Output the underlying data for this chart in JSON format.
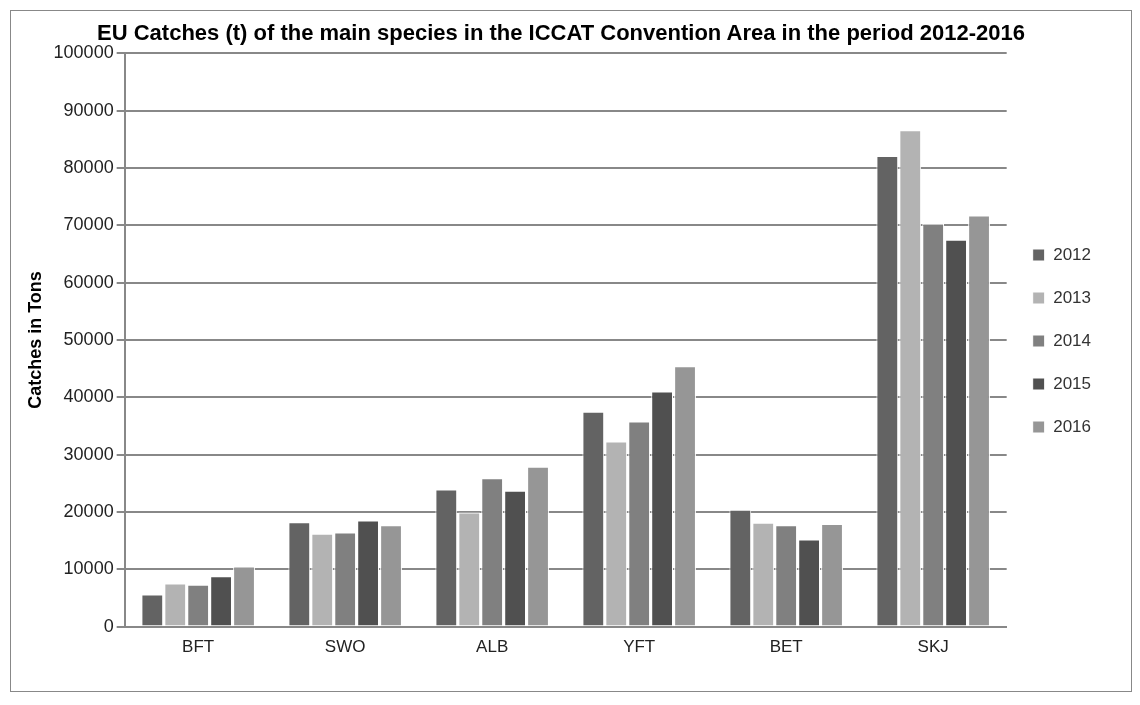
{
  "chart_data": {
    "type": "bar",
    "title": "EU Catches (t) of the main species in the ICCAT Convention Area in the period 2012-2016",
    "ylabel": "Catches in Tons",
    "categories": [
      "BFT",
      "SWO",
      "ALB",
      "YFT",
      "BET",
      "SKJ"
    ],
    "series": [
      {
        "name": "2012",
        "color": "#636363",
        "values": [
          5600,
          18200,
          23900,
          37500,
          20400,
          82100
        ]
      },
      {
        "name": "2013",
        "color": "#b3b3b3",
        "values": [
          7500,
          16200,
          19900,
          32300,
          18100,
          86600
        ]
      },
      {
        "name": "2014",
        "color": "#808080",
        "values": [
          7300,
          16400,
          25900,
          35800,
          17700,
          70300
        ]
      },
      {
        "name": "2015",
        "color": "#505050",
        "values": [
          8800,
          18500,
          23700,
          41000,
          15200,
          67500
        ]
      },
      {
        "name": "2016",
        "color": "#969696",
        "values": [
          10500,
          17700,
          27900,
          45400,
          17900,
          71700
        ]
      }
    ],
    "ylim": [
      0,
      100000
    ],
    "yticks": [
      0,
      10000,
      20000,
      30000,
      40000,
      50000,
      60000,
      70000,
      80000,
      90000,
      100000
    ],
    "grid": "y",
    "legend": "right"
  }
}
